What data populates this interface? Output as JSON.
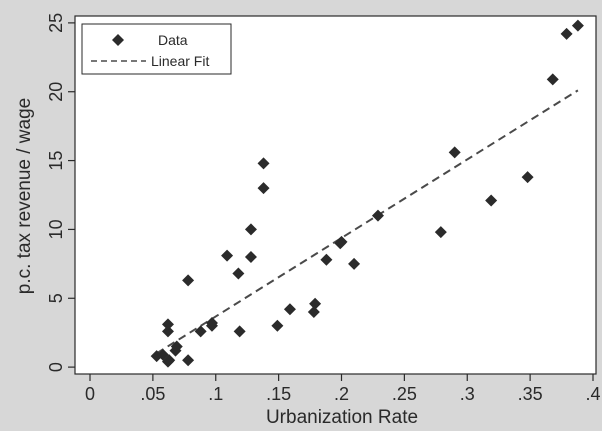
{
  "chart_data": {
    "type": "scatter",
    "title": "",
    "xlabel": "Urbanization Rate",
    "ylabel": "p.c. tax revenue / wage",
    "xlim": [
      0,
      0.4
    ],
    "ylim": [
      -0.5,
      25.5
    ],
    "x_ticks": [
      0,
      0.05,
      0.1,
      0.15,
      0.2,
      0.25,
      0.3,
      0.35,
      0.4
    ],
    "x_tick_labels": [
      "0",
      ".05",
      ".1",
      ".15",
      ".2",
      ".25",
      ".3",
      ".35",
      ".4"
    ],
    "y_ticks": [
      0,
      5,
      10,
      15,
      20,
      25
    ],
    "y_tick_labels": [
      "0",
      "5",
      "10",
      "15",
      "20",
      "25"
    ],
    "grid": false,
    "legend_position": "top-left",
    "series": [
      {
        "name": "Data",
        "kind": "points",
        "marker": "diamond",
        "color": "#2b2b2b",
        "points": [
          [
            0.053,
            0.8
          ],
          [
            0.058,
            0.9
          ],
          [
            0.062,
            0.4
          ],
          [
            0.062,
            2.6
          ],
          [
            0.062,
            3.1
          ],
          [
            0.063,
            0.5
          ],
          [
            0.068,
            1.2
          ],
          [
            0.069,
            1.5
          ],
          [
            0.078,
            6.3
          ],
          [
            0.078,
            0.5
          ],
          [
            0.088,
            2.6
          ],
          [
            0.097,
            3.0
          ],
          [
            0.097,
            3.2
          ],
          [
            0.109,
            8.1
          ],
          [
            0.118,
            6.8
          ],
          [
            0.119,
            2.6
          ],
          [
            0.128,
            8.0
          ],
          [
            0.128,
            10.0
          ],
          [
            0.138,
            14.8
          ],
          [
            0.138,
            13.0
          ],
          [
            0.149,
            3.0
          ],
          [
            0.159,
            4.2
          ],
          [
            0.178,
            4.0
          ],
          [
            0.179,
            4.6
          ],
          [
            0.188,
            7.8
          ],
          [
            0.199,
            9.0
          ],
          [
            0.2,
            9.1
          ],
          [
            0.21,
            7.5
          ],
          [
            0.229,
            11.0
          ],
          [
            0.279,
            9.8
          ],
          [
            0.29,
            15.6
          ],
          [
            0.319,
            12.1
          ],
          [
            0.348,
            13.8
          ],
          [
            0.368,
            20.9
          ],
          [
            0.379,
            24.2
          ],
          [
            0.388,
            24.8
          ]
        ]
      },
      {
        "name": "Linear Fit",
        "kind": "line",
        "dash": "dashed",
        "color": "#4a4a4a",
        "points": [
          [
            0.053,
            1.0
          ],
          [
            0.388,
            20.1
          ]
        ]
      }
    ]
  },
  "colors": {
    "background": "#d7d7d7",
    "plot_area": "#ffffff",
    "axis": "#2a2a2a"
  }
}
